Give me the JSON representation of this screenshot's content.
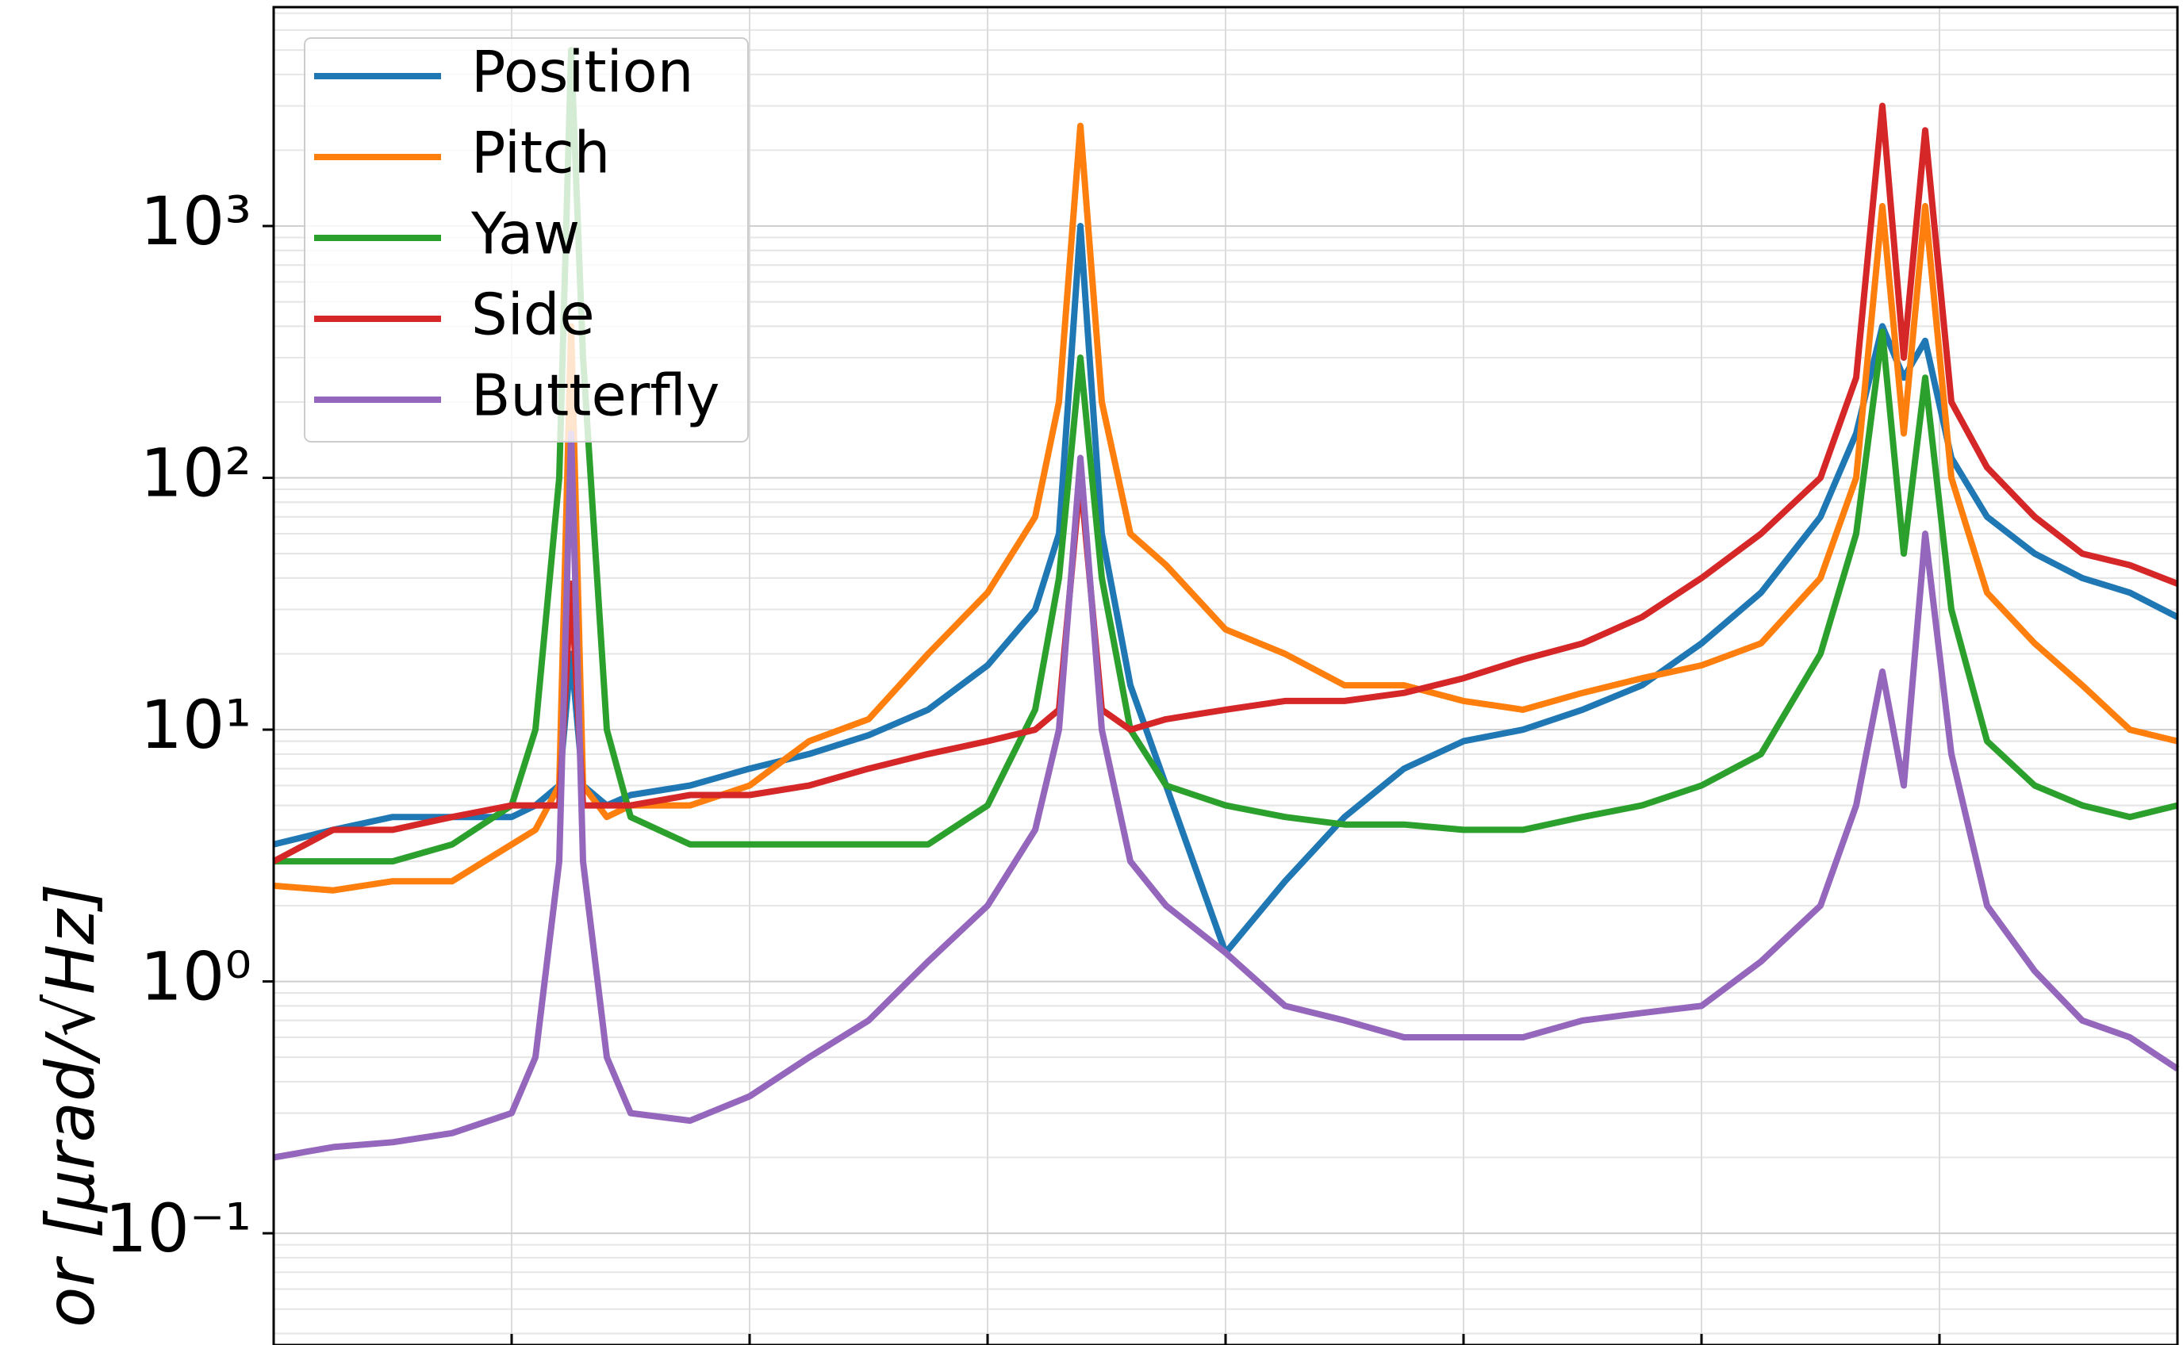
{
  "chart_data": {
    "type": "line",
    "log_y": true,
    "grid": true,
    "legend": "upper left",
    "ylabel": "or [μrad/√Hz]",
    "x": [
      0,
      0.25,
      0.5,
      0.75,
      1.0,
      1.1,
      1.2,
      1.25,
      1.3,
      1.4,
      1.5,
      1.75,
      2.0,
      2.25,
      2.5,
      2.75,
      3.0,
      3.2,
      3.3,
      3.39,
      3.48,
      3.6,
      3.75,
      4.0,
      4.25,
      4.5,
      4.75,
      5.0,
      5.25,
      5.5,
      5.75,
      6.0,
      6.25,
      6.5,
      6.65,
      6.76,
      6.85,
      6.94,
      7.05,
      7.2,
      7.4,
      7.6,
      7.8,
      8.0
    ],
    "xlim": [
      0,
      8
    ],
    "xticks": [
      1,
      2,
      3,
      4,
      5,
      6,
      7
    ],
    "ylim": [
      0.036,
      7400
    ],
    "yticks": [
      {
        "value": 0.1,
        "label": "10⁻¹"
      },
      {
        "value": 1,
        "label": "10⁰"
      },
      {
        "value": 10,
        "label": "10¹"
      },
      {
        "value": 100,
        "label": "10²"
      },
      {
        "value": 1000,
        "label": "10³"
      }
    ],
    "series": [
      {
        "name": "Position",
        "color": "#1f77b4",
        "values": [
          3.5,
          4,
          4.5,
          4.5,
          4.5,
          5,
          6,
          20,
          6,
          5,
          5.5,
          6,
          7,
          8,
          9.5,
          12,
          18,
          30,
          60,
          1000,
          60,
          15,
          6,
          1.3,
          2.5,
          4.5,
          7,
          9,
          10,
          12,
          15,
          22,
          35,
          70,
          150,
          400,
          250,
          350,
          120,
          70,
          50,
          40,
          35,
          28
        ]
      },
      {
        "name": "Pitch",
        "color": "#ff7f0e",
        "values": [
          2.4,
          2.3,
          2.5,
          2.5,
          3.5,
          4,
          6,
          400,
          6,
          4.5,
          5,
          5,
          6,
          9,
          11,
          20,
          35,
          70,
          200,
          2500,
          200,
          60,
          45,
          25,
          20,
          15,
          15,
          13,
          12,
          14,
          16,
          18,
          22,
          40,
          100,
          1200,
          150,
          1200,
          100,
          35,
          22,
          15,
          10,
          9
        ]
      },
      {
        "name": "Yaw",
        "color": "#2ca02c",
        "values": [
          3,
          3,
          3,
          3.5,
          5,
          10,
          100,
          5000,
          300,
          10,
          4.5,
          3.5,
          3.5,
          3.5,
          3.5,
          3.5,
          5,
          12,
          40,
          300,
          40,
          10,
          6,
          5,
          4.5,
          4.2,
          4.2,
          4,
          4,
          4.5,
          5,
          6,
          8,
          20,
          60,
          380,
          50,
          250,
          30,
          9,
          6,
          5,
          4.5,
          5
        ]
      },
      {
        "name": "Side",
        "color": "#d62728",
        "values": [
          3,
          4,
          4,
          4.5,
          5,
          5,
          5,
          38,
          5,
          5,
          5,
          5.5,
          5.5,
          6,
          7,
          8,
          9,
          10,
          12,
          100,
          12,
          10,
          11,
          12,
          13,
          13,
          14,
          16,
          19,
          22,
          28,
          40,
          60,
          100,
          250,
          3000,
          300,
          2400,
          200,
          110,
          70,
          50,
          45,
          38
        ]
      },
      {
        "name": "Butterfly",
        "color": "#9467bd",
        "values": [
          0.2,
          0.22,
          0.23,
          0.25,
          0.3,
          0.5,
          3,
          150,
          3,
          0.5,
          0.3,
          0.28,
          0.35,
          0.5,
          0.7,
          1.2,
          2,
          4,
          10,
          120,
          10,
          3,
          2,
          1.3,
          0.8,
          0.7,
          0.6,
          0.6,
          0.6,
          0.7,
          0.75,
          0.8,
          1.2,
          2,
          5,
          17,
          6,
          60,
          8,
          2,
          1.1,
          0.7,
          0.6,
          0.45
        ]
      }
    ]
  }
}
